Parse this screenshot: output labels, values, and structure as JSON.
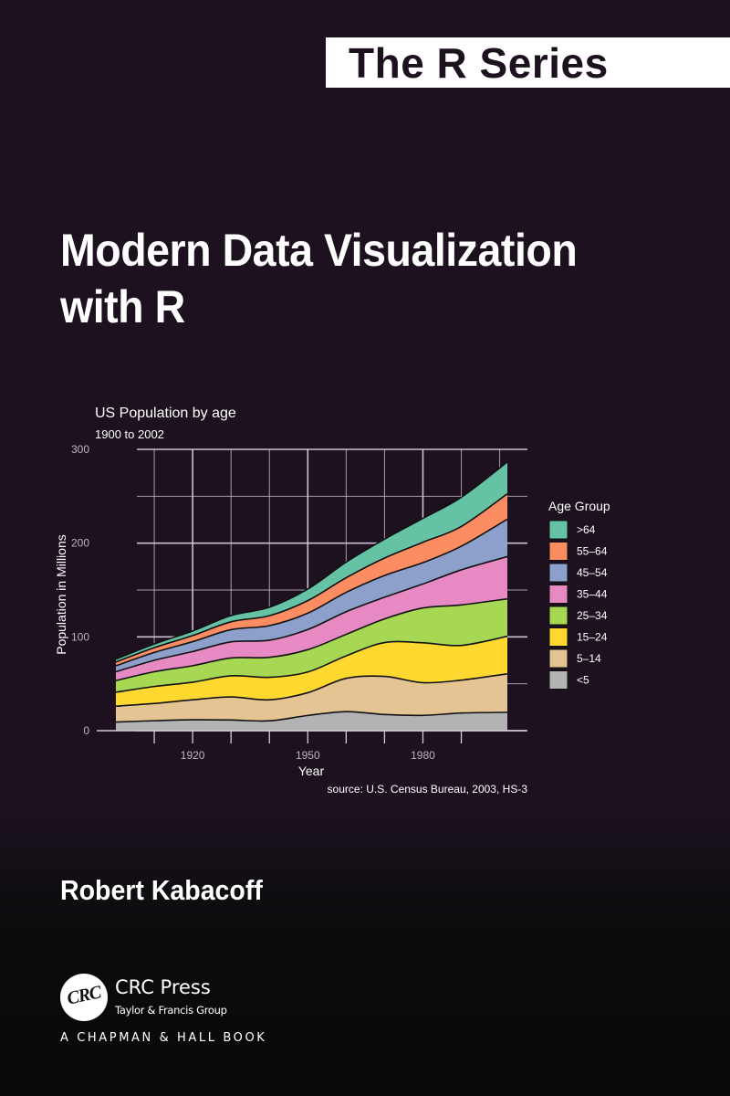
{
  "cover": {
    "series_label": "The R Series",
    "title_line1": "Modern Data Visualization",
    "title_line2": "with R",
    "author": "Robert Kabacoff",
    "publisher": {
      "logo_text": "CRC",
      "name": "CRC Press",
      "group": "Taylor & Francis Group",
      "imprint": "A CHAPMAN & HALL BOOK"
    },
    "colors": {
      "background_top": "#1d111f",
      "background_bottom": "#0b0b0b",
      "banner": "#ffffff",
      "text": "#ffffff"
    }
  },
  "chart_data": {
    "type": "area",
    "stacked": true,
    "title": "US Population by age",
    "subtitle": "1900 to 2002",
    "xlabel": "Year",
    "ylabel": "Population in Millions",
    "caption": "source: U.S. Census Bureau, 2003, HS-3",
    "xlim": [
      1900,
      2002
    ],
    "ylim": [
      0,
      300
    ],
    "x_ticks": [
      1920,
      1950,
      1980
    ],
    "y_ticks": [
      0,
      100,
      200,
      300
    ],
    "grid": true,
    "legend": {
      "title": "Age Group",
      "position": "right"
    },
    "x": [
      1900,
      1910,
      1920,
      1930,
      1940,
      1950,
      1960,
      1970,
      1980,
      1990,
      2002
    ],
    "series": [
      {
        "name": ">64",
        "color": "#66c2a5",
        "values": [
          3.1,
          3.9,
          4.9,
          6.6,
          9.0,
          12.3,
          16.6,
          20.1,
          25.5,
          31.1,
          34.0
        ]
      },
      {
        "name": "55-64",
        "color": "#fc8d62",
        "values": [
          4.0,
          5.1,
          6.5,
          8.4,
          10.6,
          13.4,
          15.6,
          18.6,
          21.7,
          21.1,
          27.0
        ]
      },
      {
        "name": "45-54",
        "color": "#8da0cb",
        "values": [
          6.4,
          8.4,
          10.5,
          13.0,
          15.5,
          17.4,
          20.6,
          23.2,
          22.8,
          25.2,
          40.0
        ]
      },
      {
        "name": "35-44",
        "color": "#e78ac3",
        "values": [
          9.4,
          12.2,
          15.1,
          17.2,
          18.3,
          21.5,
          24.2,
          23.1,
          25.6,
          37.4,
          45.0
        ]
      },
      {
        "name": "25-34",
        "color": "#a6d854",
        "values": [
          12.4,
          15.7,
          17.6,
          19.0,
          21.3,
          23.8,
          22.9,
          25.3,
          37.1,
          43.2,
          40.0
        ]
      },
      {
        "name": "15-24",
        "color": "#ffd92f",
        "values": [
          14.9,
          18.1,
          18.8,
          22.5,
          24.0,
          22.1,
          24.0,
          36.0,
          42.5,
          37.0,
          40.0
        ]
      },
      {
        "name": "5-14",
        "color": "#e5c494",
        "values": [
          16.9,
          18.4,
          21.3,
          24.6,
          22.4,
          24.3,
          35.5,
          40.7,
          34.9,
          35.1,
          41.0
        ]
      },
      {
        "name": "<5",
        "color": "#b3b3b3",
        "values": [
          9.2,
          10.6,
          11.6,
          11.4,
          10.5,
          16.2,
          20.3,
          17.2,
          16.3,
          18.8,
          19.6
        ]
      }
    ]
  }
}
